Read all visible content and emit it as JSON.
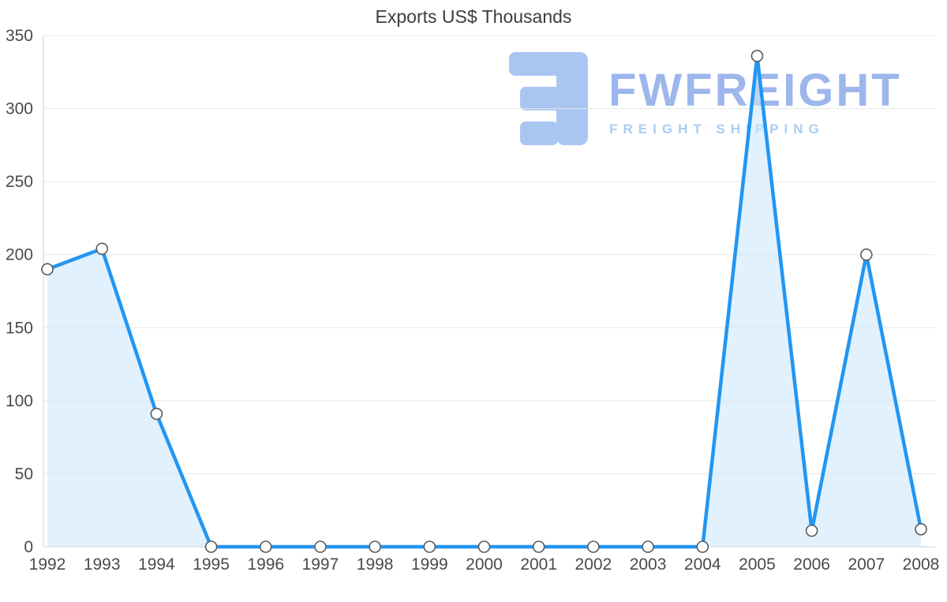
{
  "chart": {
    "title": "Exports US$ Thousands"
  },
  "watermark": {
    "brand": "FWFREIGHT",
    "tagline": "FREIGHT SHIPPING",
    "logo_color": "#a9c6f3",
    "brand_color": "#9db6ec",
    "tagline_color": "#a9cdf4"
  },
  "chart_data": {
    "type": "area",
    "title": "Exports US$ Thousands",
    "xlabel": "",
    "ylabel": "",
    "categories": [
      "1992",
      "1993",
      "1994",
      "1995",
      "1996",
      "1997",
      "1998",
      "1999",
      "2000",
      "2001",
      "2002",
      "2003",
      "2004",
      "2005",
      "2006",
      "2007",
      "2008"
    ],
    "values": [
      190,
      204,
      91,
      0,
      0,
      0,
      0,
      0,
      0,
      0,
      0,
      0,
      0,
      336,
      11,
      200,
      12
    ],
    "ylim": [
      0,
      350
    ],
    "yticks": [
      0,
      50,
      100,
      150,
      200,
      250,
      300,
      350
    ],
    "grid": true,
    "legend": "none",
    "line_color": "#2196f3",
    "fill_color": "#cde7fb",
    "fill_opacity": 0.6,
    "marker_fill": "#ffffff",
    "marker_stroke": "#5a5a5a",
    "grid_color": "#e7e7e7",
    "axis_color": "#d2d2d2",
    "tick_color": "#4a4a4a"
  }
}
